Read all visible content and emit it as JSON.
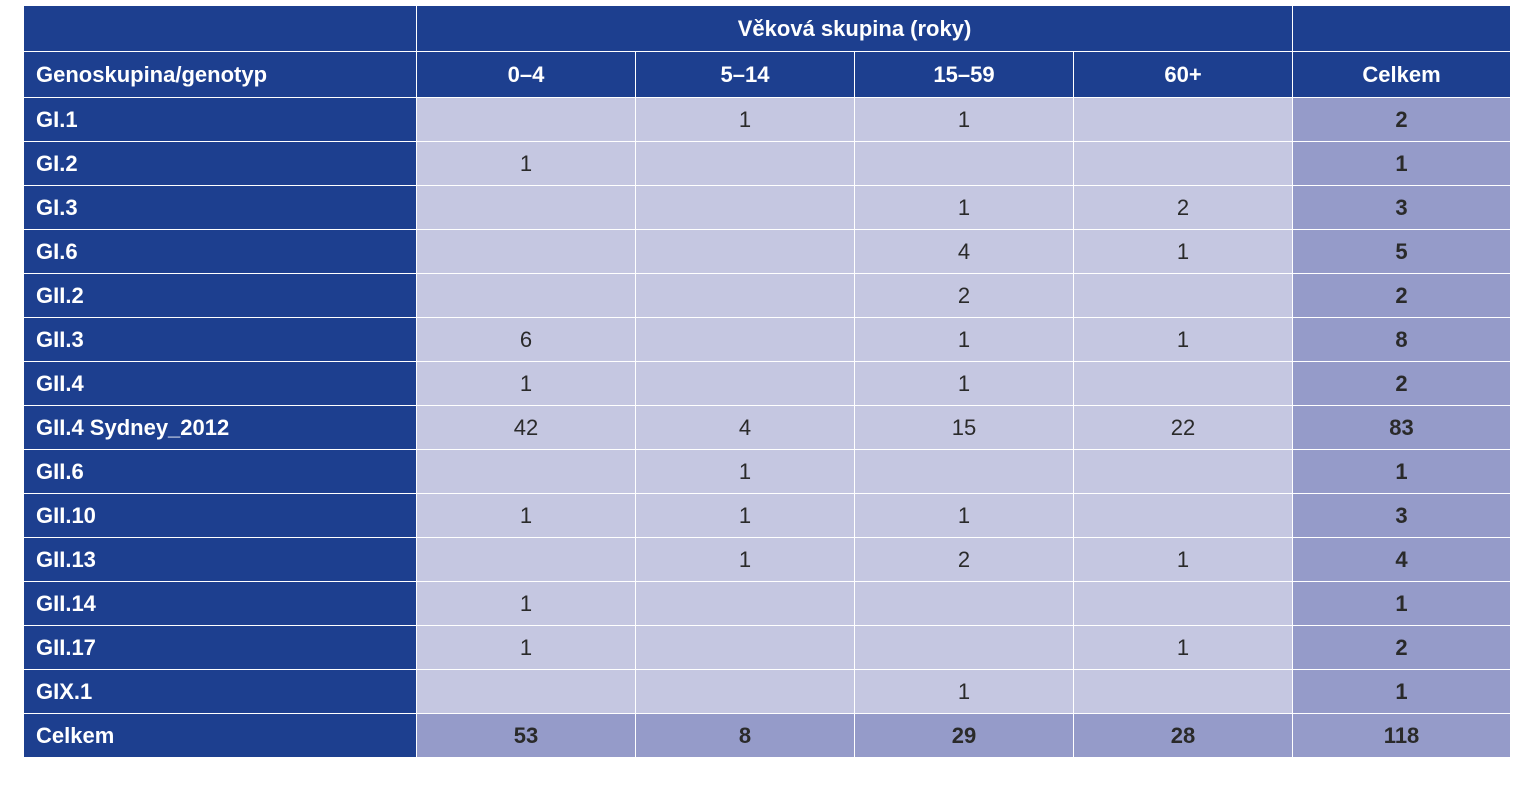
{
  "table": {
    "super_header": "Věková skupina (roky)",
    "columns": [
      "Genoskupina/genotyp",
      "0–4",
      "5–14",
      "15–59",
      "60+",
      "Celkem"
    ],
    "rows": [
      {
        "label": "GI.1",
        "cells": [
          "",
          "1",
          "1",
          ""
        ],
        "total": "2"
      },
      {
        "label": "GI.2",
        "cells": [
          "1",
          "",
          "",
          ""
        ],
        "total": "1"
      },
      {
        "label": "GI.3",
        "cells": [
          "",
          "",
          "1",
          "2"
        ],
        "total": "3"
      },
      {
        "label": "GI.6",
        "cells": [
          "",
          "",
          "4",
          "1"
        ],
        "total": "5"
      },
      {
        "label": "GII.2",
        "cells": [
          "",
          "",
          "2",
          ""
        ],
        "total": "2"
      },
      {
        "label": "GII.3",
        "cells": [
          "6",
          "",
          "1",
          "1"
        ],
        "total": "8"
      },
      {
        "label": "GII.4",
        "cells": [
          "1",
          "",
          "1",
          ""
        ],
        "total": "2"
      },
      {
        "label": "GII.4 Sydney_2012",
        "cells": [
          "42",
          "4",
          "15",
          "22"
        ],
        "total": "83"
      },
      {
        "label": "GII.6",
        "cells": [
          "",
          "1",
          "",
          ""
        ],
        "total": "1"
      },
      {
        "label": "GII.10",
        "cells": [
          "1",
          "1",
          "1",
          ""
        ],
        "total": "3"
      },
      {
        "label": "GII.13",
        "cells": [
          "",
          "1",
          "2",
          "1"
        ],
        "total": "4"
      },
      {
        "label": "GII.14",
        "cells": [
          "1",
          "",
          "",
          ""
        ],
        "total": "1"
      },
      {
        "label": "GII.17",
        "cells": [
          "1",
          "",
          "",
          "1"
        ],
        "total": "2"
      },
      {
        "label": "GIX.1",
        "cells": [
          "",
          "",
          "1",
          ""
        ],
        "total": "1"
      }
    ],
    "footer": {
      "label": "Celkem",
      "cells": [
        "53",
        "8",
        "29",
        "28"
      ],
      "total": "118"
    }
  },
  "chart_data": {
    "type": "table",
    "title": "",
    "column_group_header": "Věková skupina (roky)",
    "row_header": "Genoskupina/genotyp",
    "categories": [
      "0–4",
      "5–14",
      "15–59",
      "60+"
    ],
    "total_label": "Celkem",
    "rows": [
      {
        "name": "GI.1",
        "values": [
          null,
          1,
          1,
          null
        ],
        "total": 2
      },
      {
        "name": "GI.2",
        "values": [
          1,
          null,
          null,
          null
        ],
        "total": 1
      },
      {
        "name": "GI.3",
        "values": [
          null,
          null,
          1,
          2
        ],
        "total": 3
      },
      {
        "name": "GI.6",
        "values": [
          null,
          null,
          4,
          1
        ],
        "total": 5
      },
      {
        "name": "GII.2",
        "values": [
          null,
          null,
          2,
          null
        ],
        "total": 2
      },
      {
        "name": "GII.3",
        "values": [
          6,
          null,
          1,
          1
        ],
        "total": 8
      },
      {
        "name": "GII.4",
        "values": [
          1,
          null,
          1,
          null
        ],
        "total": 2
      },
      {
        "name": "GII.4 Sydney_2012",
        "values": [
          42,
          4,
          15,
          22
        ],
        "total": 83
      },
      {
        "name": "GII.6",
        "values": [
          null,
          1,
          null,
          null
        ],
        "total": 1
      },
      {
        "name": "GII.10",
        "values": [
          1,
          1,
          1,
          null
        ],
        "total": 3
      },
      {
        "name": "GII.13",
        "values": [
          null,
          1,
          2,
          1
        ],
        "total": 4
      },
      {
        "name": "GII.14",
        "values": [
          1,
          null,
          null,
          null
        ],
        "total": 1
      },
      {
        "name": "GII.17",
        "values": [
          1,
          null,
          null,
          1
        ],
        "total": 2
      },
      {
        "name": "GIX.1",
        "values": [
          null,
          null,
          1,
          null
        ],
        "total": 1
      }
    ],
    "column_totals": [
      53,
      8,
      29,
      28
    ],
    "grand_total": 118,
    "colors": {
      "header": "#1d3f8f",
      "cell": "#c5c7e1",
      "total": "#959bc9"
    }
  }
}
